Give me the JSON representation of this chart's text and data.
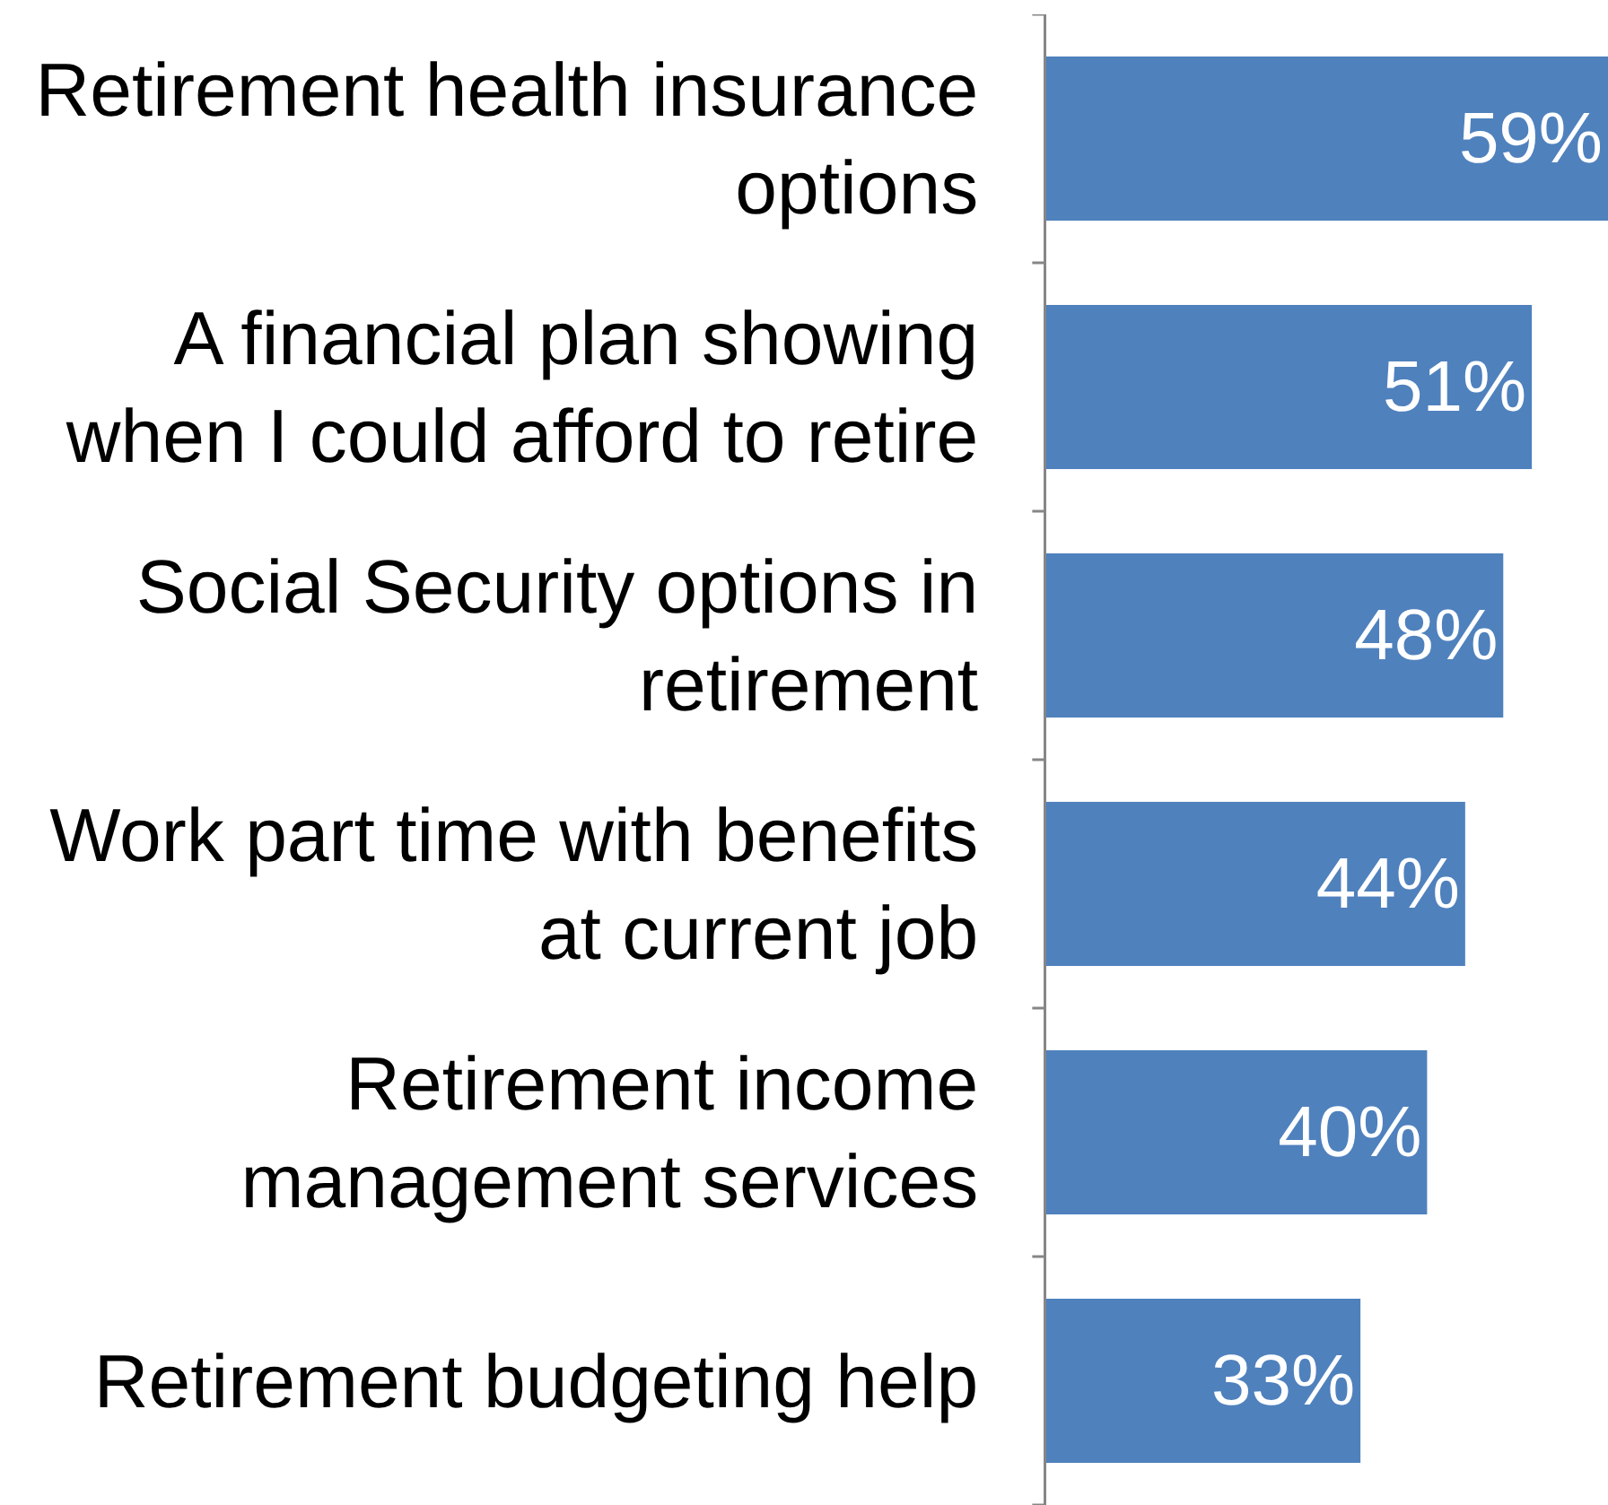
{
  "chart_data": {
    "type": "bar",
    "orientation": "horizontal",
    "categories": [
      "Retirement health insurance options",
      "A financial plan showing when I could afford to retire",
      "Social Security options in retirement",
      "Work part time with benefits at current job",
      "Retirement income management services",
      "Retirement budgeting help"
    ],
    "values": [
      59,
      51,
      48,
      44,
      40,
      33
    ],
    "value_labels": [
      "59%",
      "51%",
      "48%",
      "44%",
      "40%",
      "33%"
    ],
    "color": "#4f81bd"
  }
}
